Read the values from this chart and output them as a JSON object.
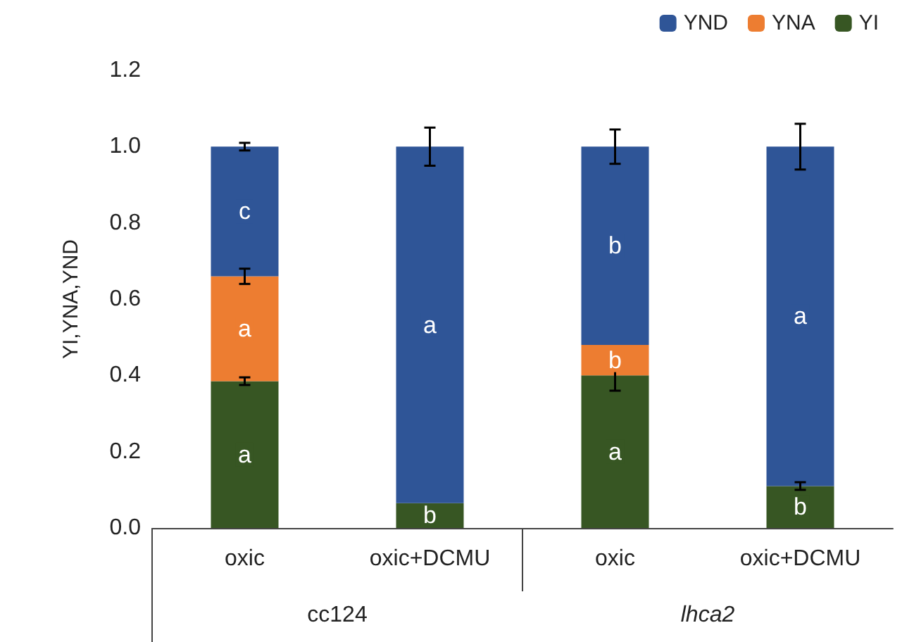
{
  "chart_data": {
    "type": "bar",
    "stacked": true,
    "ylabel": "YI,YNA,YND",
    "categories": [
      "oxic",
      "oxic+DCMU",
      "oxic",
      "oxic+DCMU"
    ],
    "annotations": [
      "cc124",
      "lhca2"
    ],
    "series": [
      {
        "name": "YI",
        "color": "#375623",
        "values": [
          0.385,
          0.065,
          0.4,
          0.11
        ],
        "errors": [
          0.01,
          null,
          0.04,
          0.01
        ],
        "value_labels": [
          "a",
          "b",
          "a",
          "b"
        ]
      },
      {
        "name": "YNA",
        "color": "#ed7d31",
        "values": [
          0.275,
          0,
          0.08,
          0
        ],
        "errors": [
          0.02,
          null,
          null,
          null
        ],
        "value_labels": [
          "a",
          null,
          "b",
          null
        ]
      },
      {
        "name": "YND",
        "color": "#2f5597",
        "values": [
          0.34,
          0.935,
          0.52,
          0.89
        ],
        "errors": [
          0.01,
          0.05,
          0.045,
          0.06
        ],
        "value_labels": [
          "c",
          "a",
          "b",
          "a"
        ]
      }
    ],
    "ylim": [
      0,
      1.2
    ],
    "yticks": [
      {
        "value": 0,
        "label": "0.0"
      },
      {
        "value": 0.2,
        "label": "0.2"
      },
      {
        "value": 0.4,
        "label": "0.4"
      },
      {
        "value": 0.6,
        "label": "0.6"
      },
      {
        "value": 0.8,
        "label": "0.8"
      },
      {
        "value": 1,
        "label": "1.0"
      },
      {
        "value": 1.2,
        "label": "1.2"
      }
    ],
    "grid": false,
    "legend": "top right"
  }
}
